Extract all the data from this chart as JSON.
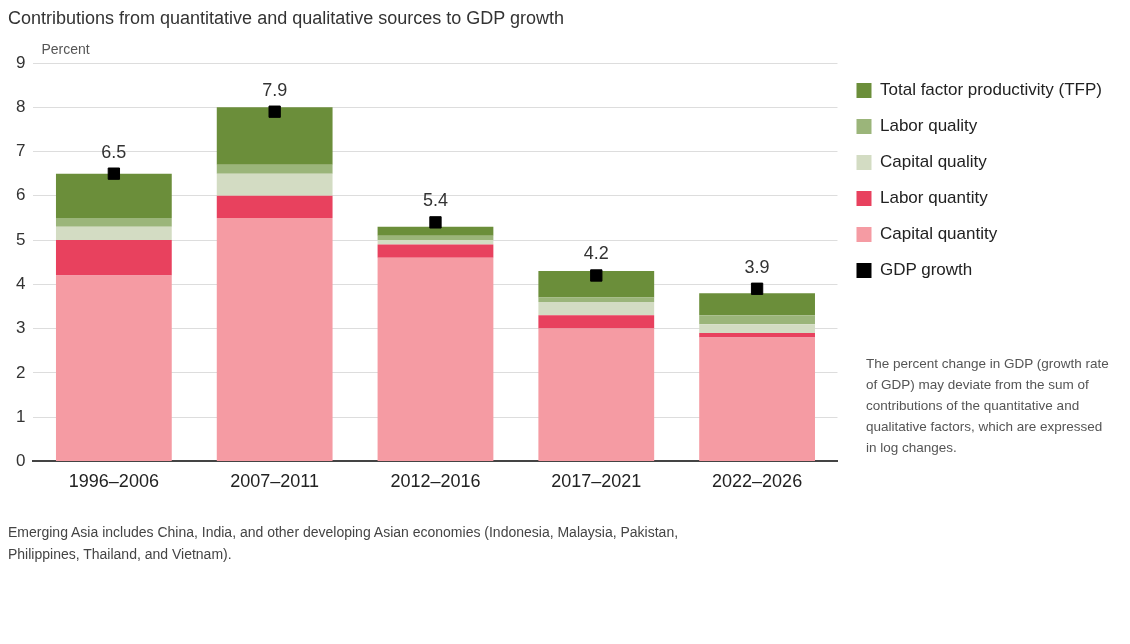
{
  "chart_data": {
    "type": "bar",
    "title": "Contributions from quantitative and qualitative sources to GDP growth",
    "ylabel": "Percent",
    "categories": [
      "1996–2006",
      "2007–2011",
      "2012–2016",
      "2017–2021",
      "2022–2026"
    ],
    "stacked": true,
    "series": [
      {
        "name": "Capital quantity",
        "color": "#f59ba3",
        "values": [
          4.2,
          5.5,
          4.6,
          3.0,
          2.8
        ]
      },
      {
        "name": "Labor quantity",
        "color": "#e8415e",
        "values": [
          0.8,
          0.5,
          0.3,
          0.3,
          0.1
        ]
      },
      {
        "name": "Capital quality",
        "color": "#d3dcc3",
        "values": [
          0.3,
          0.5,
          0.1,
          0.3,
          0.2
        ]
      },
      {
        "name": "Labor quality",
        "color": "#9bb57a",
        "values": [
          0.2,
          0.2,
          0.1,
          0.1,
          0.2
        ]
      },
      {
        "name": "Total factor productivity (TFP)",
        "color": "#6b8e3a",
        "values": [
          1.0,
          1.3,
          0.2,
          0.6,
          0.5
        ]
      },
      {
        "name": "GDP growth",
        "type": "scatter",
        "marker": "square",
        "color": "#000000",
        "values": [
          6.5,
          7.9,
          5.4,
          4.2,
          3.9
        ],
        "value_labels": [
          "6.5",
          "7.9",
          "5.4",
          "4.2",
          "3.9"
        ]
      }
    ],
    "ylim": [
      0,
      9
    ],
    "yticks": [
      0,
      1,
      2,
      3,
      4,
      5,
      6,
      7,
      8,
      9
    ],
    "grid": "y",
    "legend": "right",
    "annotations": [
      "The percent change in GDP (growth rate of GDP) may deviate from the sum of contributions  of the quantitative and qualitative factors, which are expressed in log changes.",
      "Emerging Asia includes China, India, and other developing Asian economies (Indonesia, Malaysia, Pakistan, Philippines, Thailand, and Vietnam)."
    ]
  }
}
